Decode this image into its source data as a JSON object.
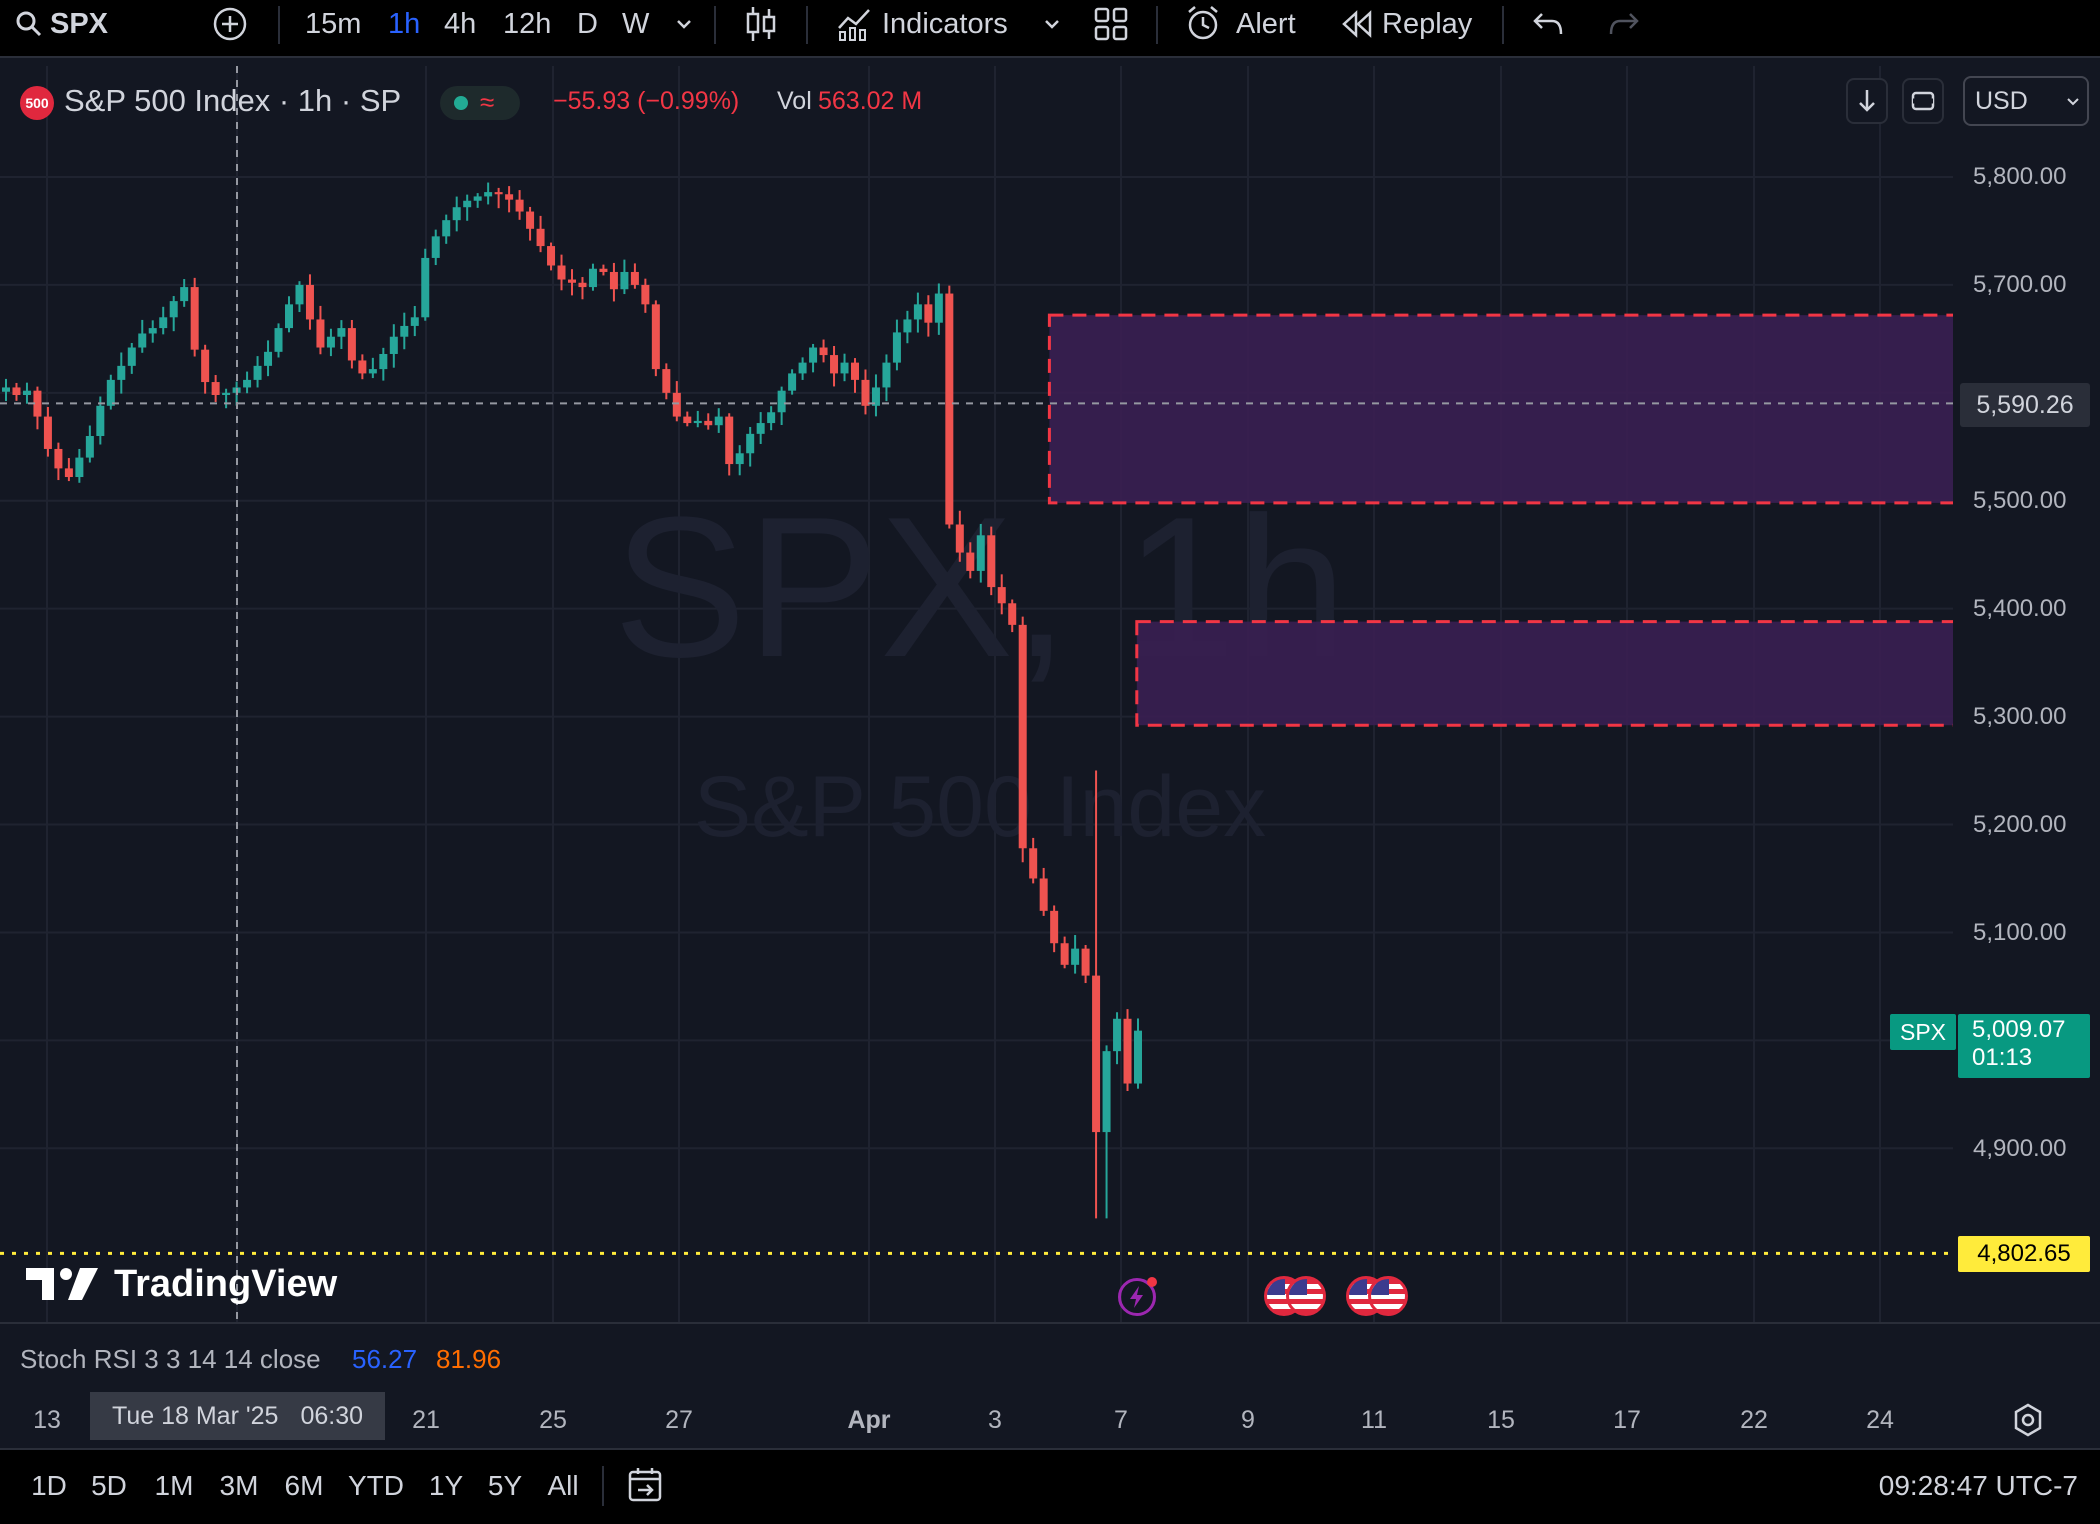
{
  "toolbar": {
    "symbol": "SPX",
    "intervals": [
      "15m",
      "1h",
      "4h",
      "12h",
      "D",
      "W"
    ],
    "selected_interval": "1h",
    "indicators_label": "Indicators",
    "alert_label": "Alert",
    "replay_label": "Replay"
  },
  "header": {
    "logo_text": "500",
    "title": "S&P 500 Index · 1h · SP",
    "change": "−55.93 (−0.99%)",
    "volume_label": "Vol",
    "volume_value": "563.02 M",
    "currency": "USD"
  },
  "watermark": {
    "symbol": "SPX, 1h",
    "name": "S&P 500 Index"
  },
  "price_axis": {
    "ticks": [
      "5,800.00",
      "5,700.00",
      "5,590.26",
      "5,500.00",
      "5,400.00",
      "5,300.00",
      "5,200.00",
      "5,100.00",
      "4,900.00"
    ],
    "crosshair_price": "5,590.26",
    "last_symbol": "SPX",
    "last_price": "5,009.07",
    "countdown": "01:13",
    "low_price": "4,802.65"
  },
  "time_axis": {
    "ticks": [
      "13",
      "21",
      "25",
      "27",
      "Apr",
      "3",
      "7",
      "9",
      "11",
      "15",
      "17",
      "22",
      "24"
    ],
    "crosshair_date": "Tue 18 Mar '25",
    "crosshair_time": "06:30"
  },
  "indicator": {
    "label": "Stoch RSI 3 3 14 14 close",
    "k_value": "56.27",
    "d_value": "81.96"
  },
  "branding": {
    "logo_text": "TradingView"
  },
  "bottom": {
    "ranges": [
      "1D",
      "5D",
      "1M",
      "3M",
      "6M",
      "YTD",
      "1Y",
      "5Y",
      "All"
    ],
    "clock": "09:28:47 UTC-7"
  },
  "colors": {
    "up": "#26a69a",
    "down": "#ef5350",
    "zone_fill": "#3a1f52",
    "zone_border": "#f23645",
    "accent": "#2962ff",
    "stoch_k": "#2962ff",
    "stoch_d": "#ff6d00",
    "low_line": "#ffeb3b"
  },
  "chart_data": {
    "type": "candlestick",
    "interval": "1h",
    "x_range": [
      "2025-03-12",
      "2025-04-24"
    ],
    "ylim": [
      4780,
      5850
    ],
    "grid": true,
    "close_path": [
      5605,
      5598,
      5602,
      5578,
      5548,
      5530,
      5522,
      5540,
      5560,
      5588,
      5612,
      5625,
      5642,
      5655,
      5660,
      5670,
      5685,
      5698,
      5640,
      5610,
      5598,
      5600,
      5605,
      5612,
      5625,
      5638,
      5660,
      5682,
      5700,
      5668,
      5642,
      5652,
      5660,
      5630,
      5618,
      5622,
      5636,
      5652,
      5662,
      5670,
      5725,
      5745,
      5760,
      5772,
      5778,
      5782,
      5786,
      5784,
      5779,
      5768,
      5752,
      5736,
      5718,
      5705,
      5702,
      5698,
      5715,
      5712,
      5696,
      5712,
      5700,
      5682,
      5622,
      5600,
      5578,
      5572,
      5574,
      5570,
      5578,
      5534,
      5544,
      5562,
      5572,
      5582,
      5602,
      5618,
      5628,
      5642,
      5635,
      5618,
      5628,
      5612,
      5588,
      5605,
      5628,
      5656,
      5668,
      5682,
      5665,
      5692,
      5478,
      5452,
      5435,
      5468,
      5420,
      5405,
      5385,
      5178,
      5150,
      5120,
      5090,
      5070,
      5085,
      5060,
      4915,
      4990,
      5020,
      4960,
      5009
    ],
    "zones": [
      {
        "top": 5672,
        "bottom": 5498,
        "from": "2025-04-03",
        "to": "2025-04-22"
      },
      {
        "top": 5388,
        "bottom": 5292,
        "from": "2025-04-04",
        "to": "2025-04-22"
      }
    ],
    "crosshair": {
      "price": 5590.26,
      "time": "Tue 18 Mar '25 06:30"
    },
    "horizontal_line": 4802.65,
    "last_price": 5009.07
  }
}
